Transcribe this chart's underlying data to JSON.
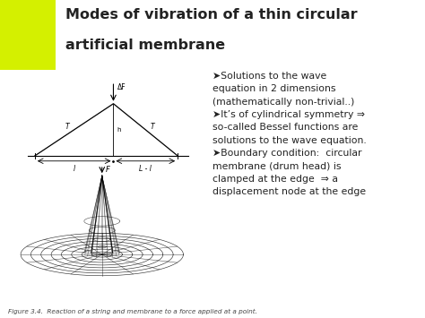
{
  "title_line1": "Modes of vibration of a thin circular",
  "title_line2": "artificial membrane",
  "title_fontsize": 11.5,
  "bg_color": "#ffffff",
  "accent_color": "#d4f000",
  "bullet_points": [
    "➤Solutions to the wave\nequation in 2 dimensions\n(mathematically non-trivial..)",
    "➤It’s of cylindrical symmetry ⇒\nso-called Bessel functions are\nsolutions to the wave equation.",
    "➤Boundary condition:  circular\nmembrane (drum head) is\nclamped at the edge  ⇒ a\ndisplacement node at the edge"
  ],
  "bullet_fontsize": 7.8,
  "caption": "Figure 3.4.  Reaction of a string and membrane to a force applied at a point.",
  "caption_fontsize": 5.2,
  "text_color": "#222222"
}
